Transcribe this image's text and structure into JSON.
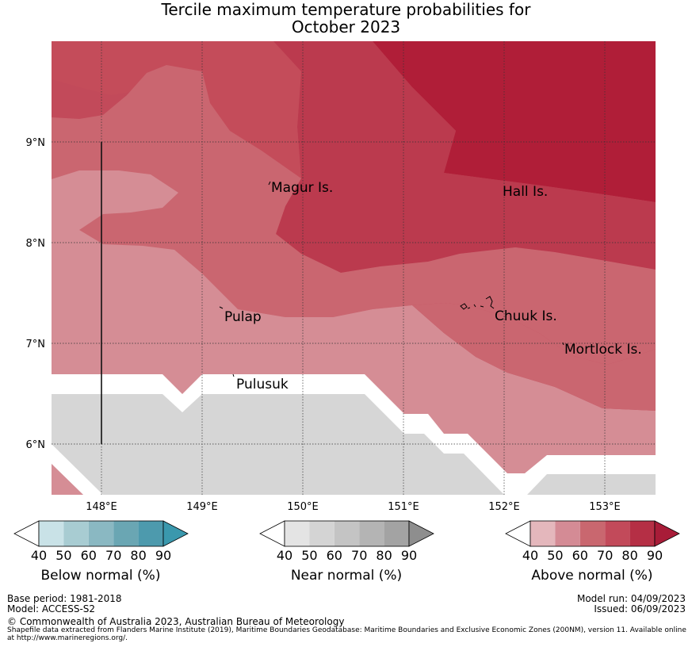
{
  "title": {
    "line1": "Tercile maximum temperature probabilities for",
    "line2": "October 2023"
  },
  "map": {
    "x_ticks": [
      "148°E",
      "149°E",
      "150°E",
      "151°E",
      "152°E",
      "153°E"
    ],
    "y_ticks": [
      "9°N",
      "8°N",
      "7°N",
      "6°N"
    ],
    "places": [
      {
        "name": "Magur Is.",
        "lon": 149.6,
        "lat": 8.55
      },
      {
        "name": "Hall Is.",
        "lon": 152.0,
        "lat": 8.5
      },
      {
        "name": "Pulap",
        "lon": 149.2,
        "lat": 7.3
      },
      {
        "name": "Chuuk Is.",
        "lon": 151.9,
        "lat": 7.3
      },
      {
        "name": "Mortlock Is.",
        "lon": 152.6,
        "lat": 6.95
      },
      {
        "name": "Pulusuk",
        "lon": 149.3,
        "lat": 6.63
      }
    ]
  },
  "legends": [
    {
      "name": "below",
      "label": "Below normal (%)",
      "ticks": [
        "40",
        "50",
        "60",
        "70",
        "80",
        "90"
      ],
      "colors": [
        "#c9e2e7",
        "#a8ccd2",
        "#8ab8c2",
        "#6aa6b3",
        "#4d9aad",
        "#3a98ad"
      ]
    },
    {
      "name": "near",
      "label": "Near normal (%)",
      "ticks": [
        "40",
        "50",
        "60",
        "70",
        "80",
        "90"
      ],
      "colors": [
        "#e4e4e4",
        "#d4d4d4",
        "#c4c4c4",
        "#b4b4b4",
        "#a3a3a3",
        "#8e8e8e"
      ]
    },
    {
      "name": "above",
      "label": "Above normal (%)",
      "ticks": [
        "40",
        "50",
        "60",
        "70",
        "80",
        "90"
      ],
      "colors": [
        "#e4b7bc",
        "#d48b95",
        "#c9676f",
        "#c24a5a",
        "#b52f45",
        "#a81c38"
      ]
    }
  ],
  "footer": {
    "base_period": "Base period: 1981-2018",
    "model": "Model: ACCESS-S2",
    "model_run": "Model run: 04/09/2023",
    "issued": "Issued: 06/09/2023",
    "copyright": "© Commonwealth of Australia 2023, Australian Bureau of Meteorology",
    "shapefile": "Shapefile data extracted from Flanders Marine Institute (2019), Maritime Boundaries Geodatabase: Maritime Boundaries and Exclusive Economic Zones (200NM), version 11. Available online at http://www.marineregions.org/."
  },
  "colors": {
    "a90": "#b01e38",
    "a80": "#bb3a4e",
    "a70": "#c44c5a",
    "a60": "#ca6670",
    "a50": "#d58d95",
    "near": "#d6d6d6"
  }
}
